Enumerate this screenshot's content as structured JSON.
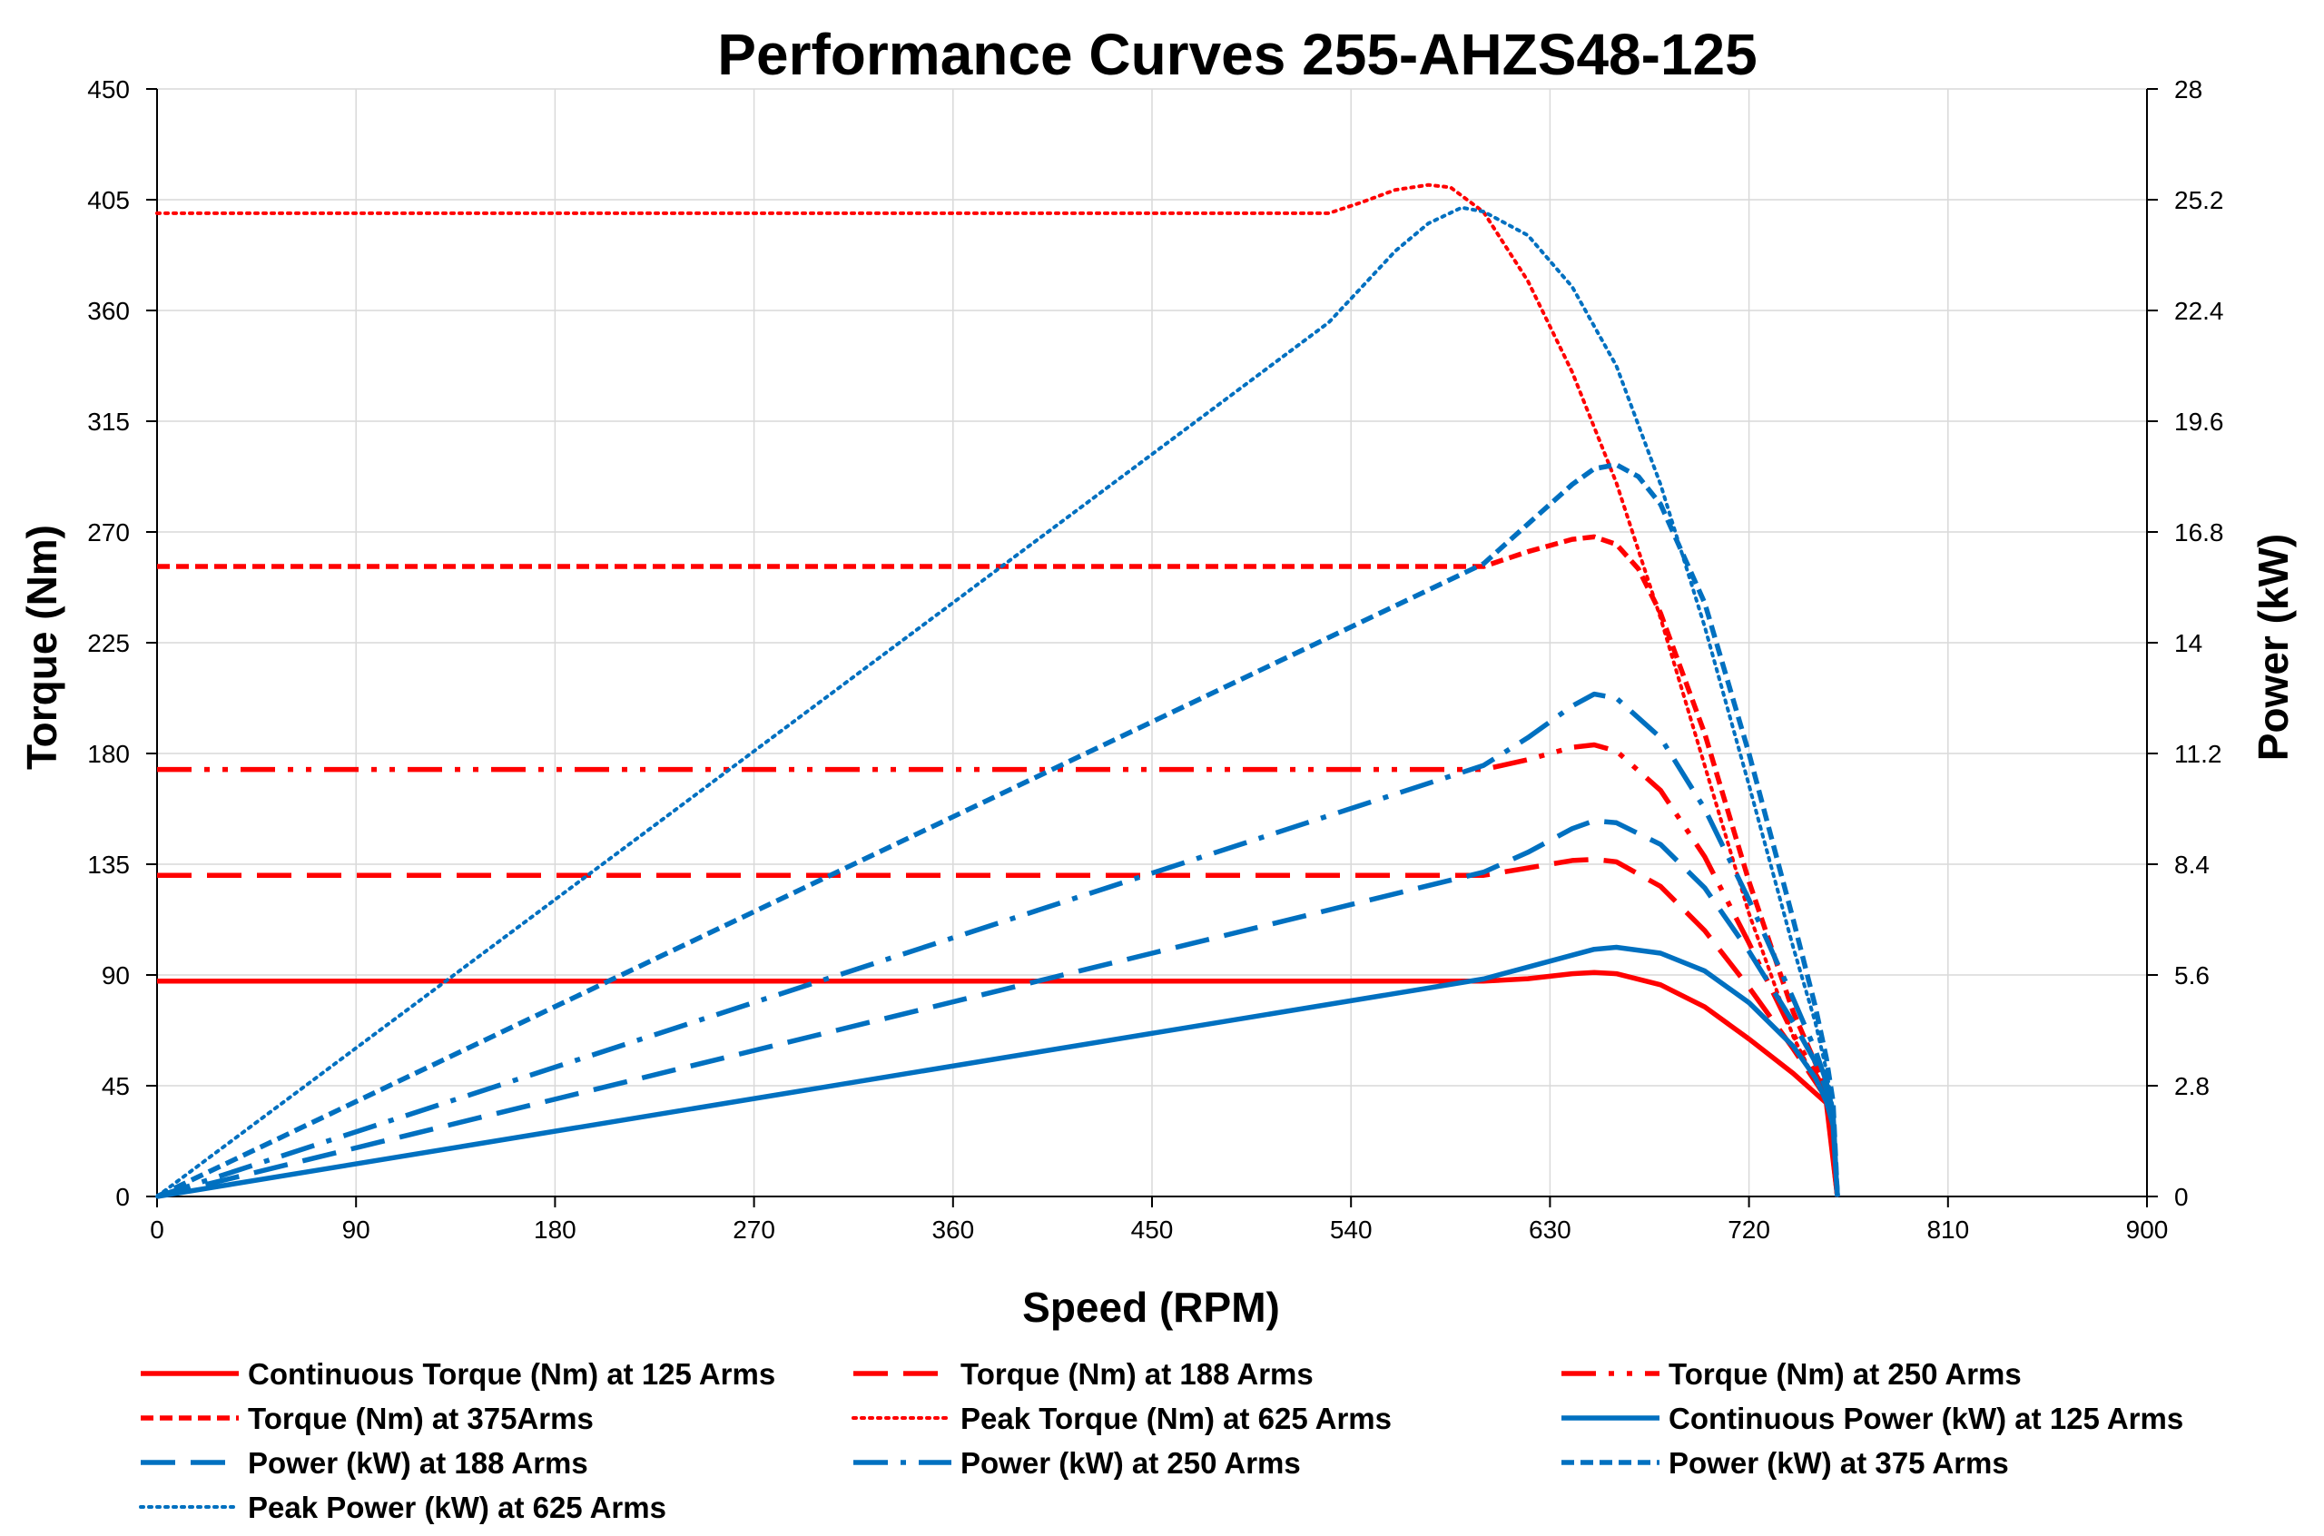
{
  "chart_data": {
    "type": "line",
    "title": "Performance Curves 255-AHZS48-125",
    "xlabel": "Speed (RPM)",
    "ylabel": "Torque (Nm)",
    "y2label": "Power (kW)",
    "xlim": [
      0,
      900
    ],
    "ylim": [
      0,
      450
    ],
    "y2lim": [
      0,
      28
    ],
    "x_ticks": [
      0,
      90,
      180,
      270,
      360,
      450,
      540,
      630,
      720,
      810,
      900
    ],
    "y_ticks": [
      0,
      45,
      90,
      135,
      180,
      225,
      270,
      315,
      360,
      405,
      450
    ],
    "y2_ticks": [
      "0",
      "2.8",
      "5.6",
      "8.4",
      "11.2",
      "14",
      "16.8",
      "19.6",
      "22.4",
      "25.2",
      "28"
    ],
    "grid": true,
    "legend_position": "bottom",
    "colors": {
      "torque": "#ff0000",
      "power": "#0070c0"
    },
    "series": [
      {
        "name": "Continuous Torque (Nm) at 125 Arms",
        "axis": "left",
        "color": "#ff0000",
        "style": "solid",
        "x": [
          0,
          600,
          620,
          640,
          650,
          660,
          680,
          700,
          720,
          740,
          755,
          760
        ],
        "y": [
          87.5,
          87.5,
          88.5,
          90.5,
          91,
          90.5,
          86,
          77,
          64,
          50,
          38,
          0
        ]
      },
      {
        "name": "Torque (Nm) at 188 Arms",
        "axis": "left",
        "color": "#ff0000",
        "style": "longdash",
        "x": [
          0,
          600,
          620,
          640,
          650,
          660,
          680,
          700,
          720,
          740,
          755,
          760
        ],
        "y": [
          130.5,
          130.5,
          133.5,
          136.5,
          137,
          136,
          126,
          108,
          85,
          60,
          40,
          0
        ]
      },
      {
        "name": "Torque (Nm) at 250 Arms",
        "axis": "left",
        "color": "#ff0000",
        "style": "dashdotdot",
        "x": [
          0,
          600,
          620,
          640,
          650,
          660,
          680,
          700,
          720,
          740,
          755,
          760
        ],
        "y": [
          173.5,
          173.5,
          177.5,
          182.5,
          183.5,
          181,
          165,
          138,
          103,
          66,
          42,
          0
        ]
      },
      {
        "name": "Torque (Nm) at 375Arms",
        "axis": "left",
        "color": "#ff0000",
        "style": "shortdash",
        "x": [
          0,
          600,
          620,
          640,
          650,
          660,
          670,
          680,
          700,
          720,
          740,
          755,
          760
        ],
        "y": [
          256,
          256,
          262,
          267,
          268,
          265,
          255,
          237,
          188,
          128,
          75,
          44,
          0
        ]
      },
      {
        "name": "Peak Torque (Nm) at 625  Arms",
        "axis": "left",
        "color": "#ff0000",
        "style": "dotted",
        "x": [
          0,
          530,
          545,
          560,
          575,
          585,
          600,
          620,
          640,
          660,
          680,
          700,
          720,
          740,
          755,
          760
        ],
        "y": [
          399.5,
          399.5,
          404,
          409,
          411,
          410,
          400,
          372,
          335,
          290,
          235,
          175,
          115,
          65,
          38,
          0
        ]
      },
      {
        "name": "Continuous Power (kW) at 125 Arms",
        "axis": "right",
        "color": "#0070c0",
        "style": "solid",
        "x": [
          0,
          600,
          620,
          640,
          650,
          660,
          680,
          700,
          720,
          740,
          750,
          755,
          758,
          760
        ],
        "y": [
          0,
          5.5,
          5.8,
          6.1,
          6.25,
          6.3,
          6.15,
          5.7,
          4.9,
          3.8,
          3.0,
          2.4,
          1.8,
          0
        ]
      },
      {
        "name": "Power (kW) at 188 Arms",
        "axis": "right",
        "color": "#0070c0",
        "style": "longdash",
        "x": [
          0,
          600,
          620,
          640,
          650,
          660,
          680,
          700,
          720,
          740,
          750,
          755,
          758,
          760
        ],
        "y": [
          0,
          8.2,
          8.7,
          9.3,
          9.5,
          9.45,
          8.9,
          7.8,
          6.2,
          4.4,
          3.4,
          2.7,
          2.0,
          0
        ]
      },
      {
        "name": "Power (kW) at 250 Arms",
        "axis": "right",
        "color": "#0070c0",
        "style": "dashdot",
        "x": [
          0,
          600,
          620,
          640,
          650,
          660,
          680,
          700,
          720,
          740,
          750,
          755,
          758,
          760
        ],
        "y": [
          0,
          10.9,
          11.6,
          12.4,
          12.7,
          12.6,
          11.6,
          9.8,
          7.5,
          5.0,
          3.7,
          2.9,
          2.1,
          0
        ]
      },
      {
        "name": "Power (kW) at 375 Arms",
        "axis": "right",
        "color": "#0070c0",
        "style": "shortdash",
        "x": [
          0,
          600,
          620,
          640,
          650,
          660,
          670,
          680,
          700,
          720,
          740,
          750,
          755,
          758,
          760
        ],
        "y": [
          0,
          16.0,
          17.0,
          18.0,
          18.4,
          18.5,
          18.2,
          17.5,
          15.0,
          11.2,
          7.0,
          4.8,
          3.5,
          2.4,
          0
        ]
      },
      {
        "name": "Peak Power (kW) at 625 Arms",
        "axis": "right",
        "color": "#0070c0",
        "style": "dotted",
        "x": [
          0,
          530,
          545,
          560,
          575,
          590,
          600,
          620,
          640,
          660,
          680,
          700,
          720,
          740,
          750,
          755,
          758,
          760
        ],
        "y": [
          0,
          22.1,
          23.0,
          23.9,
          24.6,
          25.0,
          24.9,
          24.3,
          23.0,
          21.0,
          18.0,
          14.4,
          10.4,
          6.3,
          4.4,
          3.2,
          2.2,
          0
        ]
      }
    ]
  }
}
